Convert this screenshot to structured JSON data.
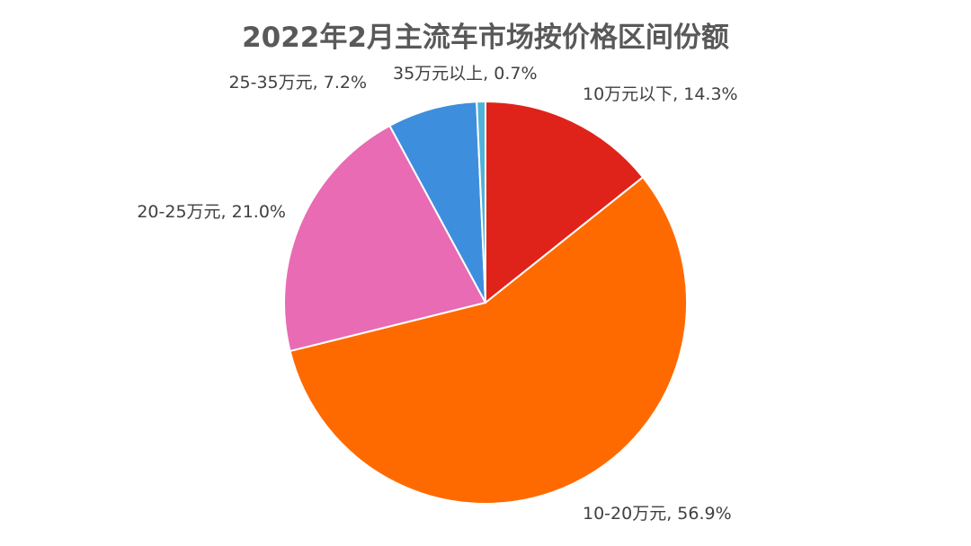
{
  "chart_data": {
    "type": "pie",
    "title": "2022年2月主流车市场按价格区间份额",
    "legend": "none",
    "start_angle_deg": 0,
    "direction": "clockwise",
    "slices": [
      {
        "name": "10万元以下",
        "value": 14.3,
        "label": "10万元以下, 14.3%",
        "color": "#E0231A"
      },
      {
        "name": "10-20万元",
        "value": 56.9,
        "label": "10-20万元, 56.9%",
        "color": "#FF6A00"
      },
      {
        "name": "20-25万元",
        "value": 21.0,
        "label": "20-25万元, 21.0%",
        "color": "#E86BB3"
      },
      {
        "name": "25-35万元",
        "value": 7.2,
        "label": "25-35万元, 7.2%",
        "color": "#3E8EDE"
      },
      {
        "name": "35万元以上",
        "value": 0.7,
        "label": "35万元以上, 0.7%",
        "color": "#4FB3D9"
      }
    ]
  }
}
